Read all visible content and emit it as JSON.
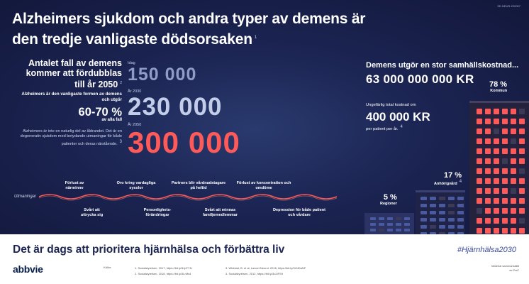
{
  "doc_code": "SE-NEUR-220007",
  "title": {
    "line1": "Alzheimers sjukdom och andra typer av demens är",
    "line2": "den tredje vanligaste dödsorsaken",
    "ref": "1"
  },
  "left": {
    "heading": "Antalet fall av demens kommer att fördubblas till år 2050",
    "heading_ref": "2",
    "subtext": "Alzheimers är den vanligaste formen av demens och utgör",
    "pct": "60-70 %",
    "pct_label": "av alla fall",
    "note": "Alzheimers är inte en naturlig del av åldrandet. Det är en degenerativ sjukdom med betydande utmaningar för både patienter och deras närstående.",
    "note_ref": "3"
  },
  "numbers": [
    {
      "label": "Idag",
      "value": "150 000"
    },
    {
      "label": "År 2030",
      "value": "230 000"
    },
    {
      "label": "År 2050",
      "value": "300 000"
    }
  ],
  "right": {
    "heading": "Demens utgör en stor samhällskostnad...",
    "cost": "63 000 000 000  KR",
    "cost_note": "Ungefärlig total kostnad om",
    "per_patient": "400 000 KR",
    "per_patient_label": "per patient per år.",
    "per_patient_ref": "4"
  },
  "bars": [
    {
      "value": "5 %",
      "label": "Regioner"
    },
    {
      "value": "17 %",
      "label": "Anhörigvård"
    },
    {
      "value": "78 %",
      "label": "Kommun"
    }
  ],
  "bar_ref": "4",
  "challenges": {
    "title": "Utmaningar",
    "items": [
      "Förlust av närminne",
      "Svårt att uttrycka sig",
      "Oro kring vardagliga sysslor",
      "Personlighets- förändringar",
      "Partners blir vårdnadstagare på heltid",
      "Svårt att minnas familjemedlemmar",
      "Förlust av koncentration och omdöme",
      "Depression för både patient och vårdare"
    ]
  },
  "footer": {
    "tagline": "Det är dags att prioritera hjärnhälsa och förbättra liv",
    "hashtag": "#Hjärnhälsa2030",
    "logo": "abbvie",
    "sources_label": "Källor:",
    "refs": [
      "1. Socialstyrelsen, 2017, https://bit.ly/3JpFYN",
      "3. Winblad, B. et al, Lancet Neurol. 2016, https://bit.ly/3LNDaNF",
      "2. Socialstyrelsen, 2018, https://bit.ly/3LrMs4",
      "4. Socialstyrelsen, 2012, https://bit.ly/3uJIFS9"
    ],
    "material_line1": "Material sammanställt",
    "material_line2": "av PwC"
  },
  "colors": {
    "background": "#1b2452",
    "accent_red": "#ff5a5a",
    "text_light": "#c3cde9",
    "navy": "#1b2452"
  }
}
